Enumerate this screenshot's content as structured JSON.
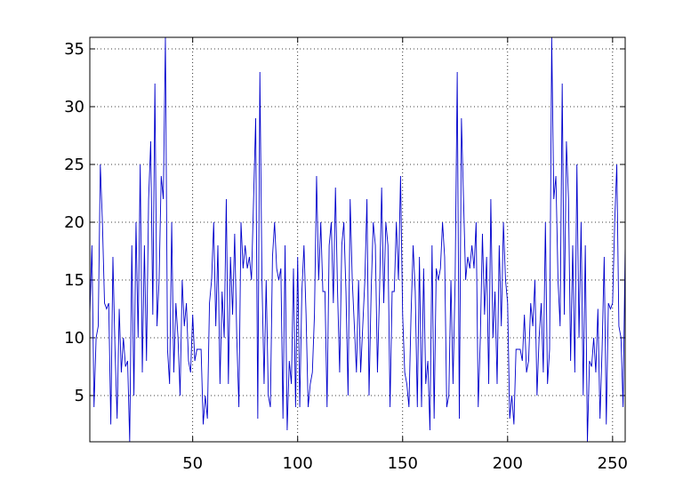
{
  "chart_data": {
    "type": "line",
    "x": [
      1,
      2,
      3,
      4,
      5,
      6,
      7,
      8,
      9,
      10,
      11,
      12,
      13,
      14,
      15,
      16,
      17,
      18,
      19,
      20,
      21,
      22,
      23,
      24,
      25,
      26,
      27,
      28,
      29,
      30,
      31,
      32,
      33,
      34,
      35,
      36,
      37,
      38,
      39,
      40,
      41,
      42,
      43,
      44,
      45,
      46,
      47,
      48,
      49,
      50,
      51,
      52,
      53,
      54,
      55,
      56,
      57,
      58,
      59,
      60,
      61,
      62,
      63,
      64,
      65,
      66,
      67,
      68,
      69,
      70,
      71,
      72,
      73,
      74,
      75,
      76,
      77,
      78,
      79,
      80,
      81,
      82,
      83,
      84,
      85,
      86,
      87,
      88,
      89,
      90,
      91,
      92,
      93,
      94,
      95,
      96,
      97,
      98,
      99,
      100,
      101,
      102,
      103,
      104,
      105,
      106,
      107,
      108,
      109,
      110,
      111,
      112,
      113,
      114,
      115,
      116,
      117,
      118,
      119,
      120,
      121,
      122,
      123,
      124,
      125,
      126,
      127,
      128,
      129,
      130,
      131,
      132,
      133,
      134,
      135,
      136,
      137,
      138,
      139,
      140,
      141,
      142,
      143,
      144,
      145,
      146,
      147,
      148,
      149,
      150,
      151,
      152,
      153,
      154,
      155,
      156,
      157,
      158,
      159,
      160,
      161,
      162,
      163,
      164,
      165,
      166,
      167,
      168,
      169,
      170,
      171,
      172,
      173,
      174,
      175,
      176,
      177,
      178,
      179,
      180,
      181,
      182,
      183,
      184,
      185,
      186,
      187,
      188,
      189,
      190,
      191,
      192,
      193,
      194,
      195,
      196,
      197,
      198,
      199,
      200,
      201,
      202,
      203,
      204,
      205,
      206,
      207,
      208,
      209,
      210,
      211,
      212,
      213,
      214,
      215,
      216,
      217,
      218,
      219,
      220,
      221,
      222,
      223,
      224,
      225,
      226,
      227,
      228,
      229,
      230,
      231,
      232,
      233,
      234,
      235,
      236,
      237,
      238,
      239,
      240,
      241,
      242,
      243,
      244,
      245,
      246,
      247,
      248,
      249,
      250,
      251,
      252,
      253,
      254,
      255,
      256
    ],
    "series": [
      {
        "color": "#0000cc",
        "values": [
          12,
          18,
          4,
          10,
          11,
          25,
          20,
          13,
          12.5,
          13,
          2.5,
          17,
          9,
          3,
          12.5,
          7,
          10,
          7.5,
          8,
          1,
          18,
          5,
          20,
          10,
          25,
          7,
          18,
          8,
          22,
          27,
          12,
          32,
          11,
          15,
          24,
          22,
          36,
          9,
          6,
          20,
          7,
          13,
          10,
          5,
          15,
          11,
          13,
          8,
          7,
          12,
          8,
          9,
          9,
          9,
          2.5,
          5,
          3,
          13,
          15,
          20,
          11,
          18,
          6,
          14,
          10,
          22,
          6,
          17,
          12,
          19,
          10,
          4,
          20,
          16,
          18,
          16,
          17,
          15,
          22,
          29,
          3,
          33,
          15,
          6,
          15,
          5,
          4,
          17,
          20,
          16,
          15,
          16,
          3,
          18,
          2,
          8,
          6,
          16,
          4,
          17,
          4,
          14,
          18,
          12,
          4,
          6,
          7,
          12,
          24,
          15,
          20,
          14,
          14,
          4,
          18,
          20,
          13,
          23,
          14,
          7,
          18,
          20,
          14,
          5,
          22,
          15,
          11,
          7,
          15,
          7,
          11,
          15,
          22,
          5,
          14,
          20,
          18,
          7,
          14,
          23,
          13,
          20,
          18,
          4,
          14,
          14,
          20,
          15,
          24,
          12,
          7,
          6,
          4,
          12,
          18,
          14,
          4,
          17,
          4,
          16,
          6,
          8,
          2,
          18,
          3,
          16,
          15,
          16,
          20,
          17,
          4,
          5,
          15,
          6,
          15,
          33,
          3,
          29,
          22,
          15,
          17,
          16,
          18,
          16,
          20,
          4,
          10,
          19,
          12,
          17,
          6,
          22,
          10,
          14,
          6,
          18,
          11,
          20,
          15,
          13,
          3,
          5,
          2.5,
          9,
          9,
          9,
          8,
          12,
          7,
          8,
          13,
          11,
          15,
          5,
          10,
          13,
          7,
          20,
          6,
          9,
          36,
          22,
          24,
          15,
          11,
          32,
          12,
          27,
          22,
          8,
          18,
          7,
          25,
          10,
          20,
          5,
          18,
          1,
          8,
          7.5,
          10,
          7,
          12.5,
          3,
          9,
          17,
          2.5,
          13,
          12.5,
          13,
          20,
          25,
          11,
          10,
          4,
          18
        ]
      }
    ],
    "xlim": [
      1,
      256
    ],
    "ylim": [
      1,
      36
    ],
    "xticks": [
      50,
      100,
      150,
      200,
      250
    ],
    "yticks": [
      5,
      10,
      15,
      20,
      25,
      30,
      35
    ],
    "grid": true
  }
}
